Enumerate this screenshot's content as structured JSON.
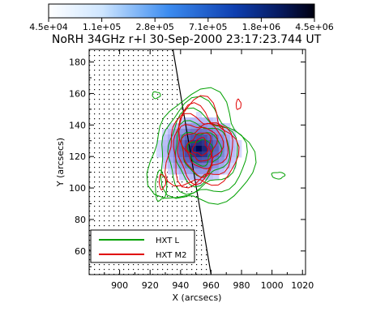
{
  "chart_data": {
    "type": "heatmap",
    "title": "NoRH 34GHz r+l 30-Sep-2000 23:17:23.744 UT",
    "xlabel": "X (arcsecs)",
    "ylabel": "Y (arcsecs)",
    "xlim": [
      880,
      1022
    ],
    "ylim": [
      45,
      188
    ],
    "x_ticks": [
      900,
      920,
      940,
      960,
      980,
      1000,
      1020
    ],
    "y_ticks": [
      60,
      80,
      100,
      120,
      140,
      160,
      180
    ],
    "colorbar": {
      "scale": "log",
      "min": 45000,
      "max": 4500000,
      "tick_labels": [
        "4.5e+04",
        "1.1e+05",
        "2.8e+05",
        "7.1e+05",
        "1.8e+06",
        "4.5e+06"
      ],
      "colors": [
        "#ffffff",
        "#2f7fe6",
        "#000040"
      ]
    },
    "limb": {
      "description": "solar limb; dotted region is on-disk",
      "points": [
        [
          935,
          188
        ],
        [
          960,
          45
        ]
      ]
    },
    "source_peak": {
      "x": 952,
      "y": 125
    },
    "legend": {
      "placement": "bottom-left",
      "entries": [
        {
          "label": "HXT L",
          "color": "#00a000"
        },
        {
          "label": "HXT M2",
          "color": "#e00000"
        }
      ]
    },
    "series": [
      {
        "name": "HXT L",
        "contour_levels": 6,
        "color": "#00a000"
      },
      {
        "name": "HXT M2",
        "contour_levels": 7,
        "color": "#e00000"
      }
    ]
  }
}
